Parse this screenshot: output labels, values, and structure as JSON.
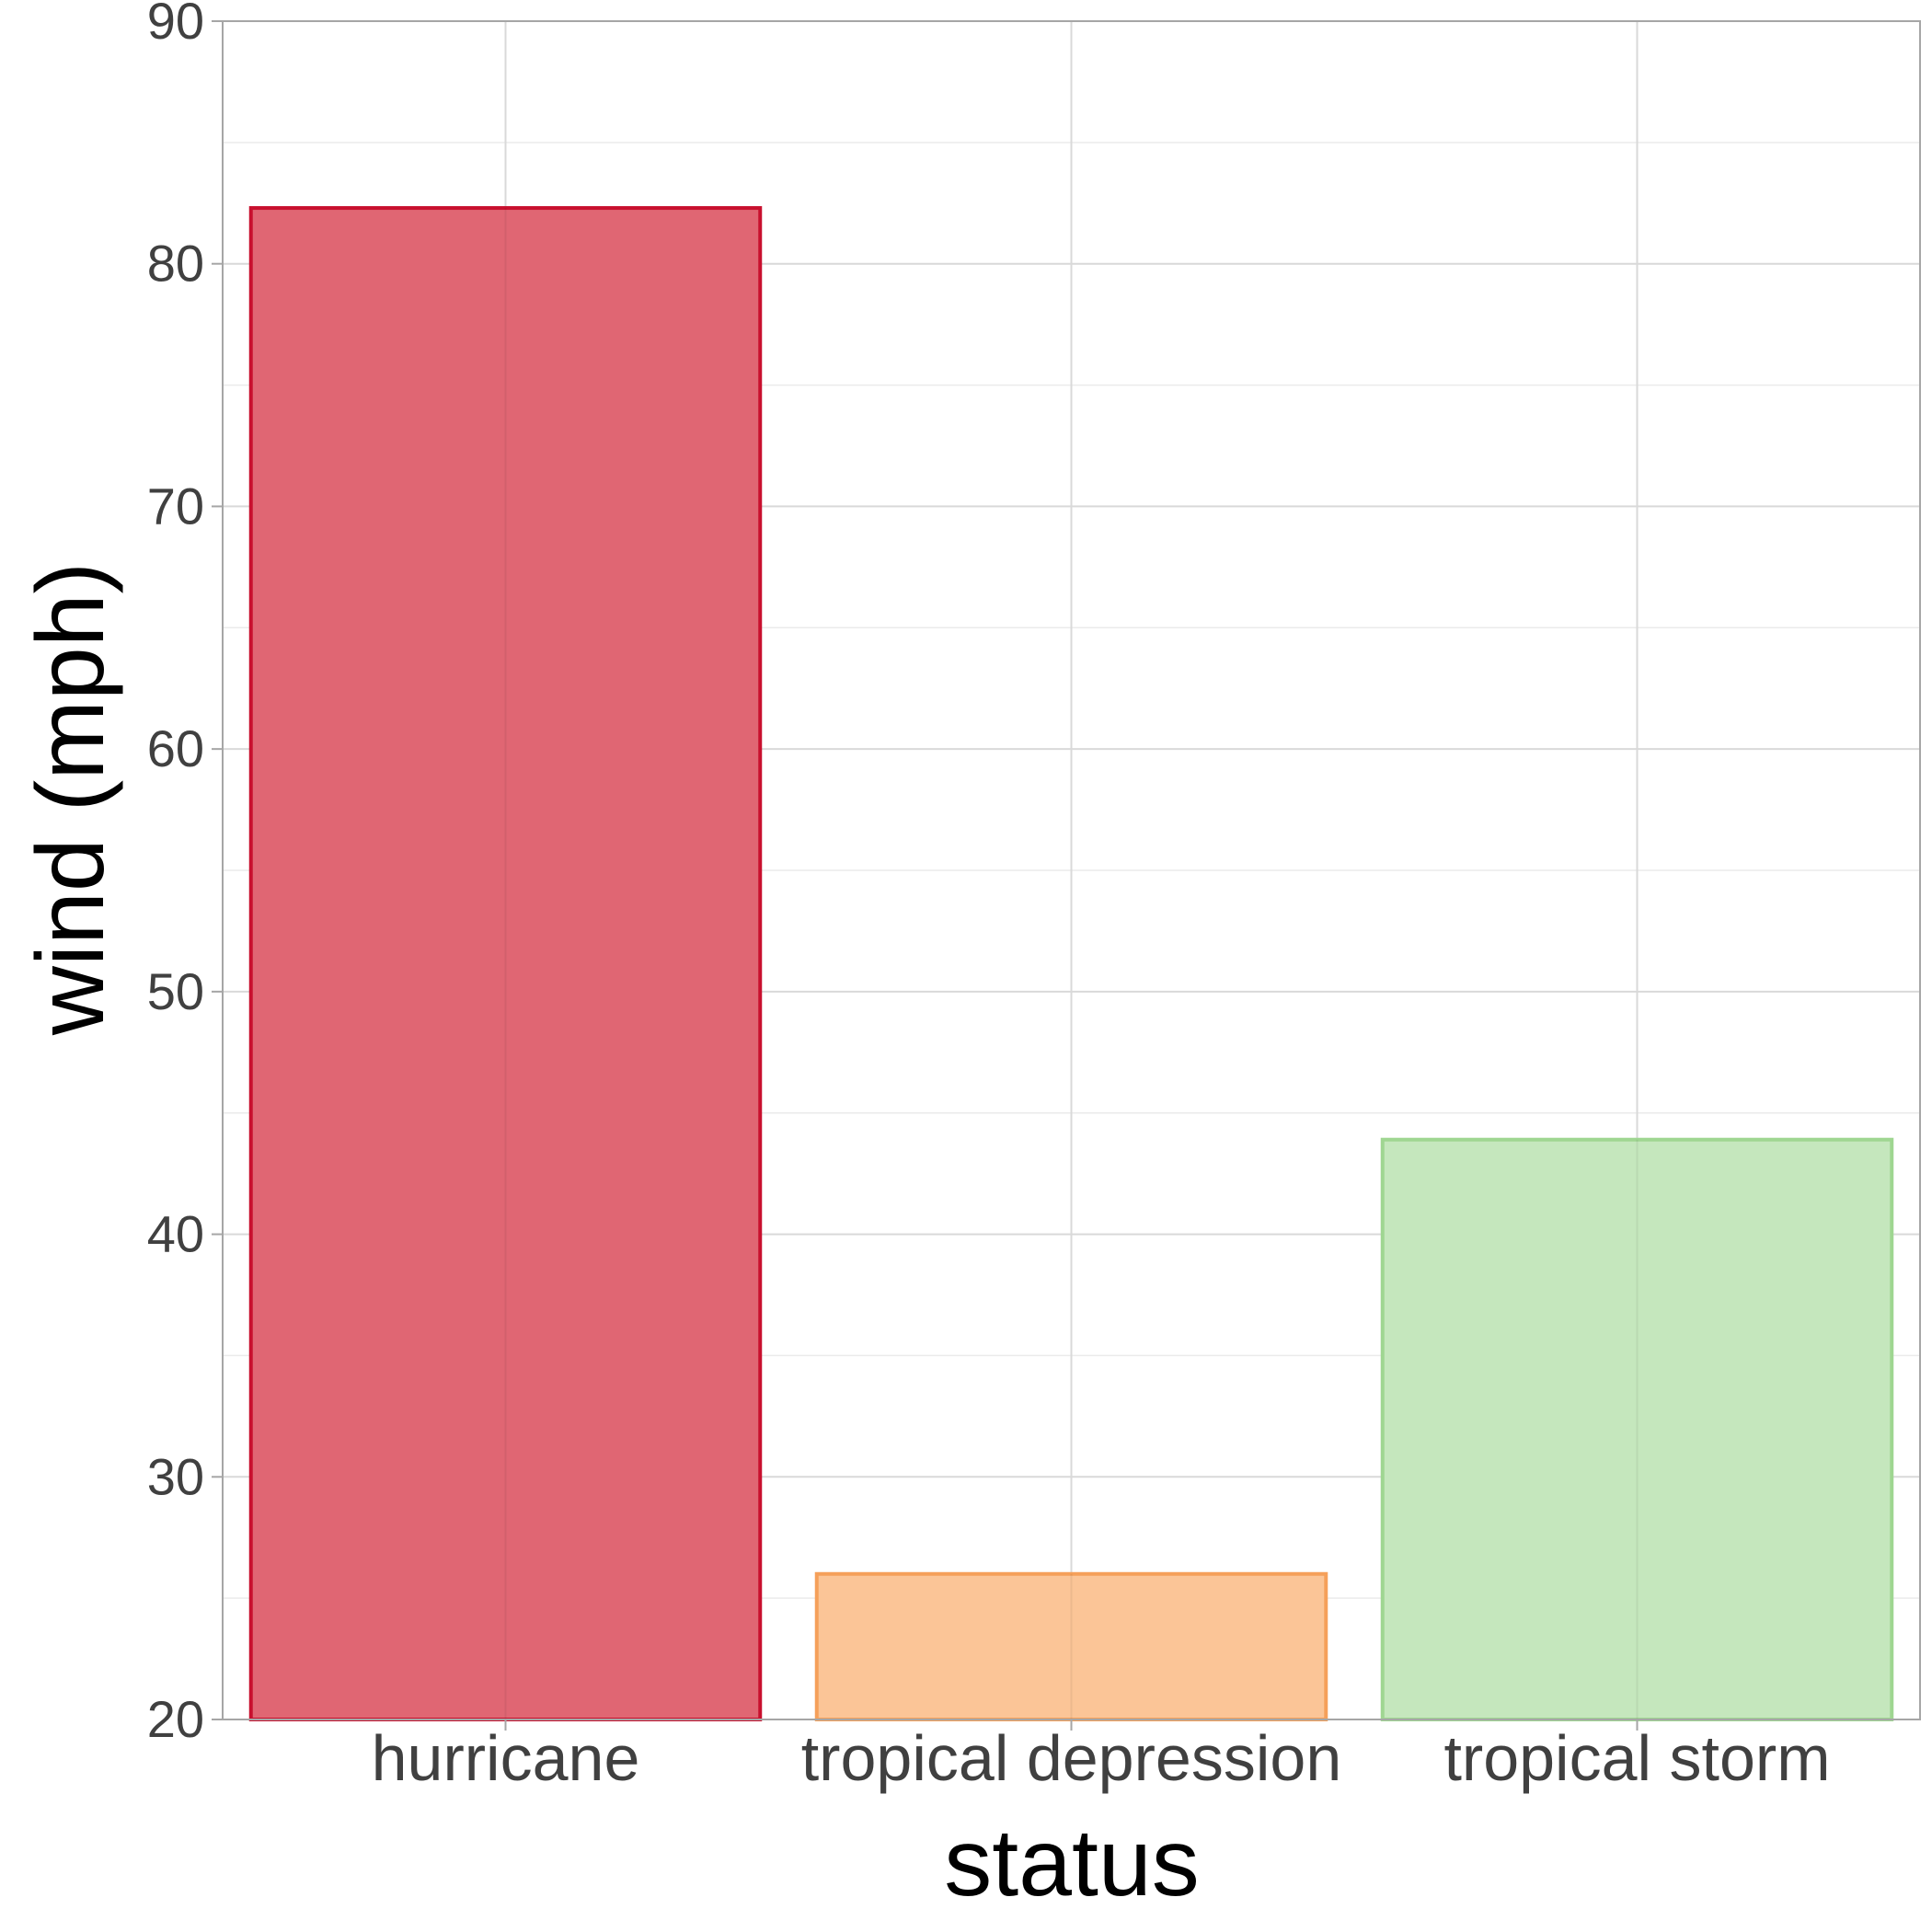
{
  "chart_data": {
    "type": "bar",
    "title": "",
    "xlabel": "status",
    "ylabel": "wind (mph)",
    "categories": [
      "hurricane",
      "tropical depression",
      "tropical storm"
    ],
    "values": [
      82.3,
      26.0,
      43.9
    ],
    "ylim": [
      20,
      90
    ],
    "yticks": [
      "20",
      "30",
      "40",
      "50",
      "60",
      "70",
      "80",
      "90"
    ],
    "ytick_values": [
      20,
      30,
      40,
      50,
      60,
      70,
      80,
      90
    ],
    "grid": true,
    "legend": "none",
    "colors": {
      "fills": [
        "#e06673",
        "#fbc597",
        "#c5e7bd"
      ],
      "strokes": [
        "#c8102e",
        "#f5a05a",
        "#9fd691"
      ],
      "grid_major": "#d9d9d9",
      "grid_minor": "#ebebeb",
      "panel_border": "#a6a6a6"
    }
  }
}
